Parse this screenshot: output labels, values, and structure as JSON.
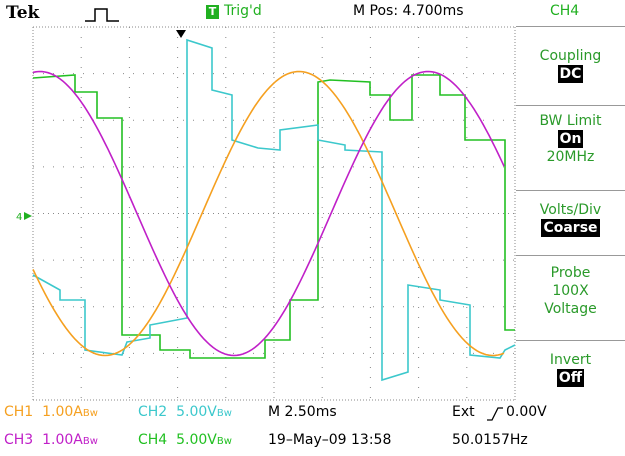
{
  "header": {
    "brand": "Tek",
    "trigger_icon": "T",
    "trigger_state": "Trig'd",
    "position": "M Pos: 4.700ms",
    "channel": "CH4"
  },
  "ground_marker": "4",
  "menu": [
    {
      "label": "Coupling",
      "value": "DC"
    },
    {
      "label": "BW Limit",
      "value": "On",
      "extra": "20MHz"
    },
    {
      "label": "Volts/Div",
      "value": "Coarse"
    },
    {
      "label": "Probe",
      "lines": [
        "100X",
        "Voltage"
      ]
    },
    {
      "label": "Invert",
      "value": "Off"
    }
  ],
  "status": {
    "ch1": {
      "name": "CH1",
      "scale": "1.00A",
      "bw": "Bw"
    },
    "ch2": {
      "name": "CH2",
      "scale": "5.00V",
      "bw": "Bw"
    },
    "ch3": {
      "name": "CH3",
      "scale": "1.00A",
      "bw": "Bw"
    },
    "ch4": {
      "name": "CH4",
      "scale": "5.00V",
      "bw": "Bw"
    },
    "timebase": "M 2.50ms",
    "trigger_source": "Ext",
    "trigger_level": "0.00V",
    "date": "19–May–09 13:58",
    "frequency": "50.0157Hz"
  }
}
